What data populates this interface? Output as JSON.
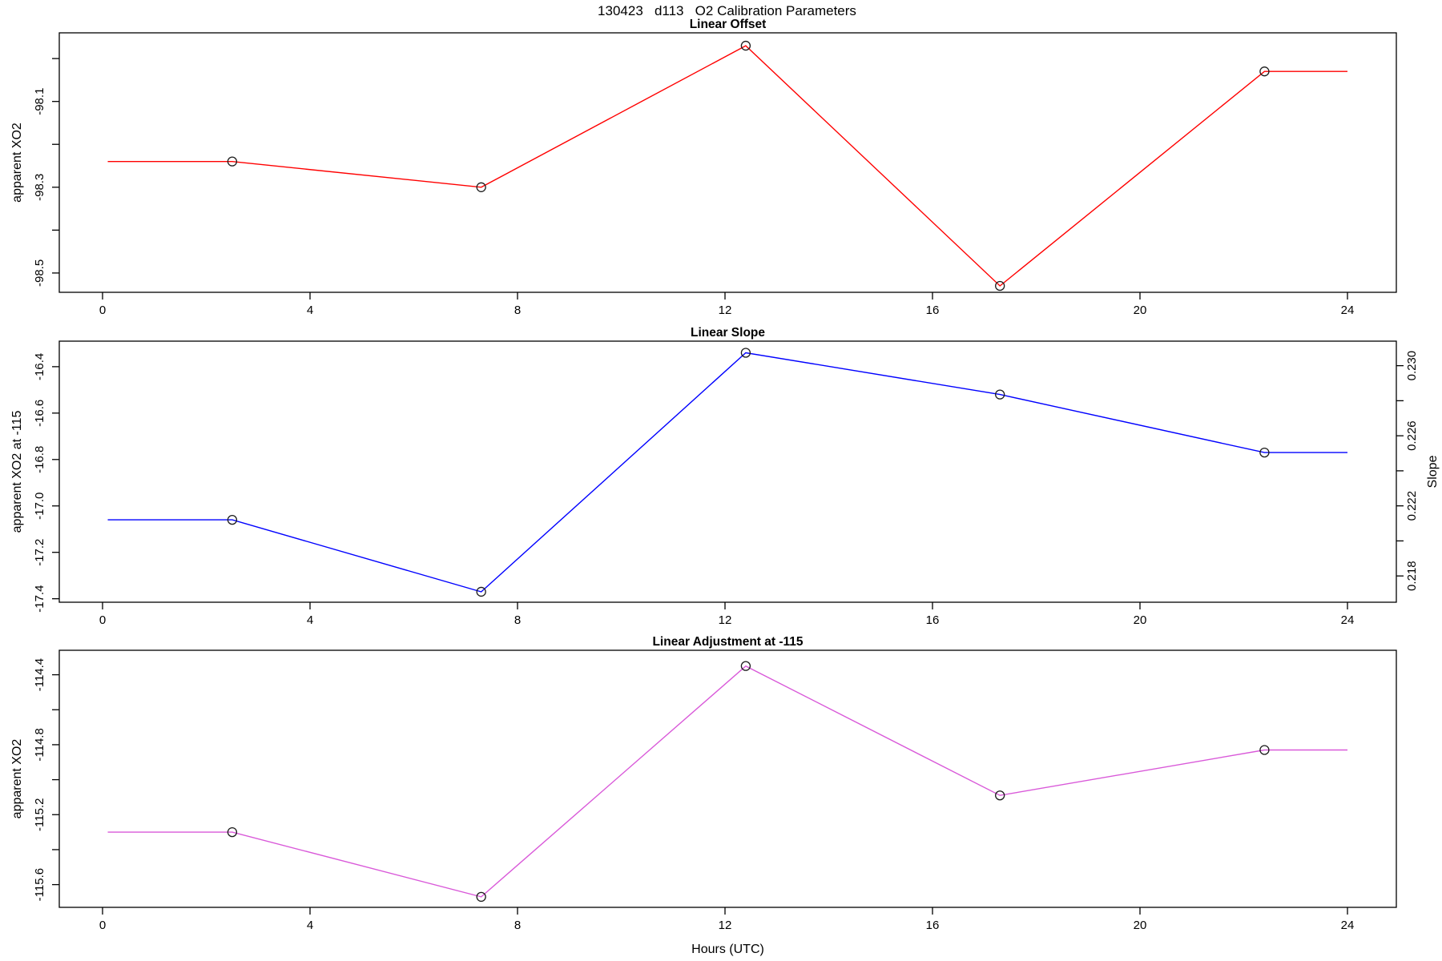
{
  "page": {
    "title": "130423   d113   O2 Calibration Parameters"
  },
  "chart_data": {
    "type": "line",
    "description": "Three vertically stacked line panels sharing one x axis; open black circle markers on colored polylines; first and last segments extend flat to the data range edges",
    "x_axis": {
      "label": "Hours (UTC)",
      "ticks": [
        0,
        4,
        8,
        12,
        16,
        20,
        24
      ],
      "xlim": [
        -0.9,
        24.95
      ]
    },
    "marker_times_hours": [
      2.5,
      7.3,
      12.4,
      17.3,
      22.4
    ],
    "line_extends_flat": {
      "from_hour": 0.1,
      "to_hour": 24
    },
    "marker_style": {
      "shape": "open-circle",
      "color": "#1c1c1c"
    },
    "panels": [
      {
        "title": "Linear Offset",
        "ylabel": "apparent XO2",
        "line_color": "#ff0000",
        "values": [
          -98.24,
          -98.3,
          -97.97,
          -98.53,
          -98.03
        ],
        "ylim": [
          -97.94,
          -98.545
        ],
        "yticks": [
          {
            "v": -98.0,
            "label": null
          },
          {
            "v": -98.1,
            "label": "-98.1"
          },
          {
            "v": -98.2,
            "label": null
          },
          {
            "v": -98.3,
            "label": "-98.3"
          },
          {
            "v": -98.4,
            "label": null
          },
          {
            "v": -98.5,
            "label": "-98.5"
          }
        ]
      },
      {
        "title": "Linear Slope",
        "ylabel": "apparent XO2 at -115",
        "line_color": "#0000ff",
        "values": [
          -17.06,
          -17.37,
          -16.34,
          -16.52,
          -16.77
        ],
        "ylim": [
          -16.29,
          -17.415
        ],
        "yticks": [
          {
            "v": -16.4,
            "label": "-16.4"
          },
          {
            "v": -16.6,
            "label": "-16.6"
          },
          {
            "v": -16.8,
            "label": "-16.8"
          },
          {
            "v": -17.0,
            "label": "-17.0"
          },
          {
            "v": -17.2,
            "label": "-17.2"
          },
          {
            "v": -17.4,
            "label": "-17.4"
          }
        ],
        "right_axis": {
          "label": "Slope",
          "ylim": [
            0.2314,
            0.2165
          ],
          "values_slope": [
            0.2213,
            0.2171,
            0.2308,
            0.2283,
            0.2251
          ],
          "yticks": [
            {
              "v": 0.23,
              "label": "0.230"
            },
            {
              "v": 0.228,
              "label": null
            },
            {
              "v": 0.226,
              "label": "0.226"
            },
            {
              "v": 0.224,
              "label": null
            },
            {
              "v": 0.222,
              "label": "0.222"
            },
            {
              "v": 0.22,
              "label": null
            },
            {
              "v": 0.218,
              "label": "0.218"
            }
          ]
        }
      },
      {
        "title": "Linear Adjustment at -115",
        "ylabel": "apparent XO2",
        "line_color": "#d959d9",
        "values": [
          -115.3,
          -115.67,
          -114.35,
          -115.09,
          -114.83
        ],
        "ylim": [
          -114.26,
          -115.73
        ],
        "yticks": [
          {
            "v": -114.4,
            "label": "-114.4"
          },
          {
            "v": -114.6,
            "label": null
          },
          {
            "v": -114.8,
            "label": "-114.8"
          },
          {
            "v": -115.0,
            "label": null
          },
          {
            "v": -115.2,
            "label": "-115.2"
          },
          {
            "v": -115.4,
            "label": null
          },
          {
            "v": -115.6,
            "label": "-115.6"
          }
        ]
      }
    ]
  }
}
